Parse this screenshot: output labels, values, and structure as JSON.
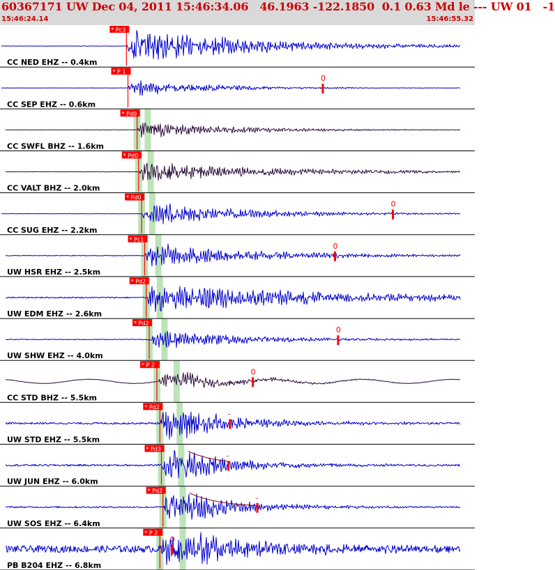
{
  "header": {
    "title": "60367171 UW Dec 04, 2011 15:46:34.06   46.1963 -122.1850  0.1 0.63 Md le --- UW 01   -1",
    "time_start": "15:46:24.14",
    "time_end": "15:46:55.32"
  },
  "colors": {
    "trace_blue": "#0000cc",
    "trace_dark": "#2a0a3a",
    "pick_red": "#ff0000",
    "phase_band": "#bde3b8",
    "separator": "#000000",
    "header_bg": "#d9d9d9",
    "header_text": "#cc0000"
  },
  "chart_data": {
    "type": "seismogram",
    "time_range": [
      "15:46:24.14",
      "15:46:55.32"
    ],
    "traces": [
      {
        "label": "CC NED EHZ -- 0.4km",
        "p_label": "* Pc3",
        "p_time": 8.3,
        "s_time": null,
        "coda_time": null,
        "coda_label": "",
        "color": "blue",
        "amp": 0.95,
        "decay": 0.12,
        "bg": 0.01,
        "longwave": 0,
        "pre_flat": true
      },
      {
        "label": "CC SEP EHZ -- 0.6km",
        "p_label": "* P 1",
        "p_time": 8.4,
        "s_time": null,
        "coda_time": 21.2,
        "coda_label": "0",
        "color": "blue",
        "amp": 0.45,
        "decay": 0.18,
        "bg": 0.015,
        "longwave": 0,
        "pre_flat": true
      },
      {
        "label": "CC SWFL BHZ -- 1.6km",
        "p_label": "* Pd0",
        "p_time": 9.0,
        "s_time": 9.7,
        "coda_time": null,
        "coda_label": "",
        "color": "dark",
        "amp": 0.45,
        "decay": 0.16,
        "bg": 0.02,
        "longwave": 0,
        "pre_flat": false
      },
      {
        "label": "CC VALT BHZ -- 2.0km",
        "p_label": "* Pd0",
        "p_time": 9.1,
        "s_time": 9.9,
        "coda_time": null,
        "coda_label": "",
        "color": "dark",
        "amp": 0.45,
        "decay": 0.1,
        "bg": 0.02,
        "longwave": 0,
        "pre_flat": false
      },
      {
        "label": "CC SUG EHZ -- 2.2km",
        "p_label": "* Pd0",
        "p_time": 9.3,
        "s_time": 10.0,
        "coda_time": 25.8,
        "coda_label": "0",
        "color": "blue",
        "amp": 0.6,
        "decay": 0.14,
        "bg": 0.015,
        "longwave": 0,
        "pre_flat": true
      },
      {
        "label": "UW HSR EHZ -- 2.5km",
        "p_label": "* Pc1",
        "p_time": 9.5,
        "s_time": 10.4,
        "coda_time": 22.0,
        "coda_label": "0",
        "color": "blue",
        "amp": 0.55,
        "decay": 0.12,
        "bg": 0.03,
        "longwave": 0,
        "pre_flat": false
      },
      {
        "label": "UW EDM EHZ -- 2.6km",
        "p_label": "* Pd2",
        "p_time": 9.6,
        "s_time": 10.5,
        "coda_time": null,
        "coda_label": "",
        "color": "blue",
        "amp": 0.75,
        "decay": 0.08,
        "bg": 0.04,
        "longwave": 0,
        "pre_flat": false
      },
      {
        "label": "UW SHW EHZ -- 4.0km",
        "p_label": "* Pd2",
        "p_time": 9.8,
        "s_time": 10.8,
        "coda_time": 22.2,
        "coda_label": "0",
        "color": "blue",
        "amp": 0.45,
        "decay": 0.14,
        "bg": 0.04,
        "longwave": 0,
        "pre_flat": false
      },
      {
        "label": "CC STD BHZ -- 5.5km",
        "p_label": "* P 2",
        "p_time": 10.3,
        "s_time": 11.6,
        "coda_time": 16.6,
        "coda_label": "0",
        "color": "dark",
        "amp": 0.45,
        "decay": 0.2,
        "bg": 0.02,
        "longwave": 0.22,
        "pre_flat": false
      },
      {
        "label": "UW STD EHZ -- 5.5km",
        "p_label": "* Pd2",
        "p_time": 10.5,
        "s_time": 11.8,
        "coda_time": 15.1,
        "coda_label": "-",
        "color": "blue",
        "amp": 0.9,
        "decay": 0.2,
        "bg": 0.05,
        "longwave": 0,
        "pre_flat": false
      },
      {
        "label": "UW JUN EHZ -- 6.0km",
        "p_label": "* Pd3",
        "p_time": 10.6,
        "s_time": 11.9,
        "coda_time": 15.0,
        "coda_label": "-",
        "color": "blue",
        "amp": 0.9,
        "decay": 0.22,
        "bg": 0.05,
        "longwave": 0,
        "pre_flat": false
      },
      {
        "label": "UW SOS EHZ -- 6.4km",
        "p_label": "* Pd2",
        "p_time": 10.7,
        "s_time": 12.0,
        "coda_time": 16.9,
        "coda_label": "-",
        "color": "blue",
        "amp": 0.9,
        "decay": 0.22,
        "bg": 0.04,
        "longwave": 0,
        "pre_flat": false
      },
      {
        "label": "PB B204 EHZ -- 6.8km",
        "p_label": "* P 2",
        "p_time": 10.5,
        "s_time": 12.0,
        "coda_time": 11.3,
        "coda_label": "0",
        "color": "blue",
        "amp": 0.9,
        "decay": 0.15,
        "bg": 0.18,
        "longwave": 0,
        "pre_flat": false
      }
    ]
  }
}
